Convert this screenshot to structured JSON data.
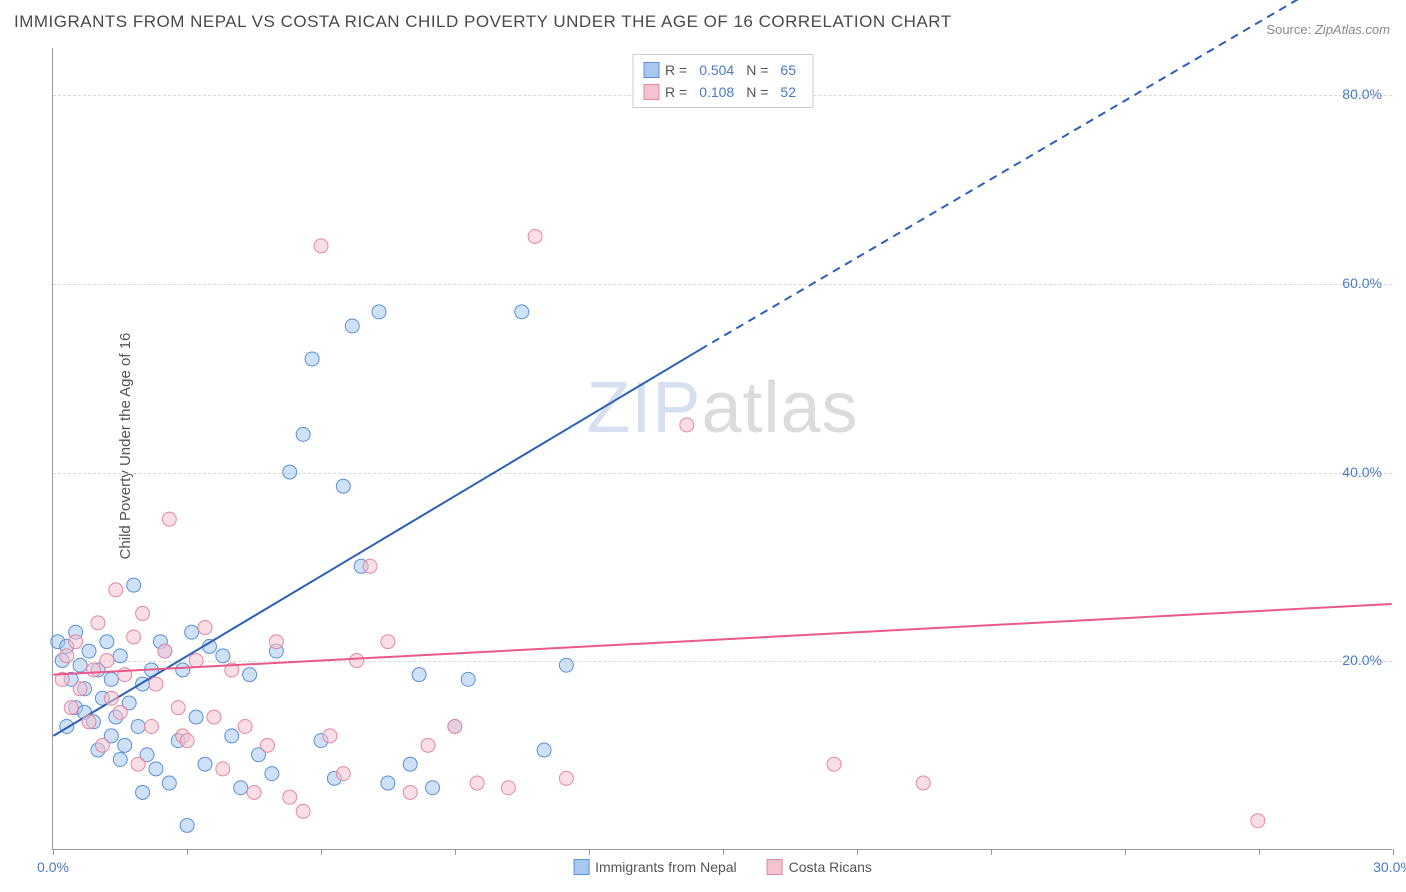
{
  "title": "IMMIGRANTS FROM NEPAL VS COSTA RICAN CHILD POVERTY UNDER THE AGE OF 16 CORRELATION CHART",
  "source_label": "Source:",
  "source_value": "ZipAtlas.com",
  "ylabel": "Child Poverty Under the Age of 16",
  "watermark_a": "ZIP",
  "watermark_b": "atlas",
  "chart": {
    "type": "scatter",
    "xlim": [
      0,
      30
    ],
    "ylim": [
      0,
      85
    ],
    "x_ticks": [
      0,
      3,
      6,
      9,
      12,
      15,
      18,
      21,
      24,
      27,
      30
    ],
    "x_tick_labels": {
      "0": "0.0%",
      "30": "30.0%"
    },
    "y_gridlines": [
      20,
      40,
      60,
      80
    ],
    "y_tick_labels": {
      "20": "20.0%",
      "40": "40.0%",
      "60": "60.0%",
      "80": "80.0%"
    },
    "background_color": "#ffffff",
    "grid_color": "#d8d8d8",
    "axis_color": "#999999",
    "tick_label_color": "#4a7ac7",
    "series": [
      {
        "name": "Immigrants from Nepal",
        "fill": "#a8c8f0",
        "stroke": "#5b8fd6",
        "line_color": "#2c5fb8",
        "R": "0.504",
        "N": "65",
        "trend": {
          "x1": 0,
          "y1": 12,
          "x2": 14.5,
          "y2": 53,
          "dash_to_x": 30,
          "dash_to_y": 96
        },
        "points": [
          [
            0.1,
            22
          ],
          [
            0.2,
            20
          ],
          [
            0.3,
            21.5
          ],
          [
            0.3,
            13
          ],
          [
            0.4,
            18
          ],
          [
            0.5,
            23
          ],
          [
            0.5,
            15
          ],
          [
            0.6,
            19.5
          ],
          [
            0.7,
            17
          ],
          [
            0.7,
            14.5
          ],
          [
            0.8,
            21
          ],
          [
            0.9,
            13.5
          ],
          [
            1.0,
            19
          ],
          [
            1.0,
            10.5
          ],
          [
            1.1,
            16
          ],
          [
            1.2,
            22
          ],
          [
            1.3,
            12
          ],
          [
            1.3,
            18
          ],
          [
            1.4,
            14
          ],
          [
            1.5,
            9.5
          ],
          [
            1.5,
            20.5
          ],
          [
            1.6,
            11
          ],
          [
            1.7,
            15.5
          ],
          [
            1.8,
            28
          ],
          [
            1.9,
            13
          ],
          [
            2.0,
            17.5
          ],
          [
            2.0,
            6
          ],
          [
            2.1,
            10
          ],
          [
            2.2,
            19
          ],
          [
            2.3,
            8.5
          ],
          [
            2.4,
            22
          ],
          [
            2.5,
            21
          ],
          [
            2.6,
            7
          ],
          [
            2.8,
            11.5
          ],
          [
            2.9,
            19
          ],
          [
            3.0,
            2.5
          ],
          [
            3.1,
            23
          ],
          [
            3.2,
            14
          ],
          [
            3.4,
            9
          ],
          [
            3.5,
            21.5
          ],
          [
            3.8,
            20.5
          ],
          [
            4.0,
            12
          ],
          [
            4.2,
            6.5
          ],
          [
            4.4,
            18.5
          ],
          [
            4.6,
            10
          ],
          [
            4.9,
            8
          ],
          [
            5.0,
            21
          ],
          [
            5.3,
            40
          ],
          [
            5.6,
            44
          ],
          [
            5.8,
            52
          ],
          [
            6.0,
            11.5
          ],
          [
            6.3,
            7.5
          ],
          [
            6.5,
            38.5
          ],
          [
            6.7,
            55.5
          ],
          [
            6.9,
            30
          ],
          [
            7.3,
            57
          ],
          [
            7.5,
            7
          ],
          [
            8.0,
            9
          ],
          [
            8.2,
            18.5
          ],
          [
            8.5,
            6.5
          ],
          [
            9.0,
            13
          ],
          [
            9.3,
            18
          ],
          [
            10.5,
            57
          ],
          [
            11.0,
            10.5
          ],
          [
            11.5,
            19.5
          ]
        ]
      },
      {
        "name": "Costa Ricans",
        "fill": "#f5c2d0",
        "stroke": "#e488a3",
        "line_color": "#e85a8a",
        "R": "0.108",
        "N": "52",
        "trend": {
          "x1": 0,
          "y1": 18.5,
          "x2": 30,
          "y2": 26
        },
        "points": [
          [
            0.2,
            18
          ],
          [
            0.3,
            20.5
          ],
          [
            0.4,
            15
          ],
          [
            0.5,
            22
          ],
          [
            0.6,
            17
          ],
          [
            0.8,
            13.5
          ],
          [
            0.9,
            19
          ],
          [
            1.0,
            24
          ],
          [
            1.1,
            11
          ],
          [
            1.2,
            20
          ],
          [
            1.3,
            16
          ],
          [
            1.4,
            27.5
          ],
          [
            1.5,
            14.5
          ],
          [
            1.6,
            18.5
          ],
          [
            1.8,
            22.5
          ],
          [
            1.9,
            9
          ],
          [
            2.0,
            25
          ],
          [
            2.2,
            13
          ],
          [
            2.3,
            17.5
          ],
          [
            2.5,
            21
          ],
          [
            2.6,
            35
          ],
          [
            2.8,
            15
          ],
          [
            2.9,
            12
          ],
          [
            3.0,
            11.5
          ],
          [
            3.2,
            20
          ],
          [
            3.4,
            23.5
          ],
          [
            3.6,
            14
          ],
          [
            3.8,
            8.5
          ],
          [
            4.0,
            19
          ],
          [
            4.3,
            13
          ],
          [
            4.5,
            6
          ],
          [
            4.8,
            11
          ],
          [
            5.0,
            22
          ],
          [
            5.3,
            5.5
          ],
          [
            5.6,
            4
          ],
          [
            6.0,
            64
          ],
          [
            6.2,
            12
          ],
          [
            6.5,
            8
          ],
          [
            6.8,
            20
          ],
          [
            7.1,
            30
          ],
          [
            7.5,
            22
          ],
          [
            8.0,
            6
          ],
          [
            8.4,
            11
          ],
          [
            9.0,
            13
          ],
          [
            9.5,
            7
          ],
          [
            10.2,
            6.5
          ],
          [
            10.8,
            65
          ],
          [
            11.5,
            7.5
          ],
          [
            14.2,
            45
          ],
          [
            17.5,
            9
          ],
          [
            19.5,
            7
          ],
          [
            27.0,
            3
          ]
        ]
      }
    ],
    "bottom_legend": [
      {
        "label": "Immigrants from Nepal",
        "fill": "#a8c8f0",
        "stroke": "#5b8fd6"
      },
      {
        "label": "Costa Ricans",
        "fill": "#f5c2d0",
        "stroke": "#e488a3"
      }
    ],
    "marker_radius": 7,
    "marker_opacity": 0.55,
    "line_width": 2
  }
}
